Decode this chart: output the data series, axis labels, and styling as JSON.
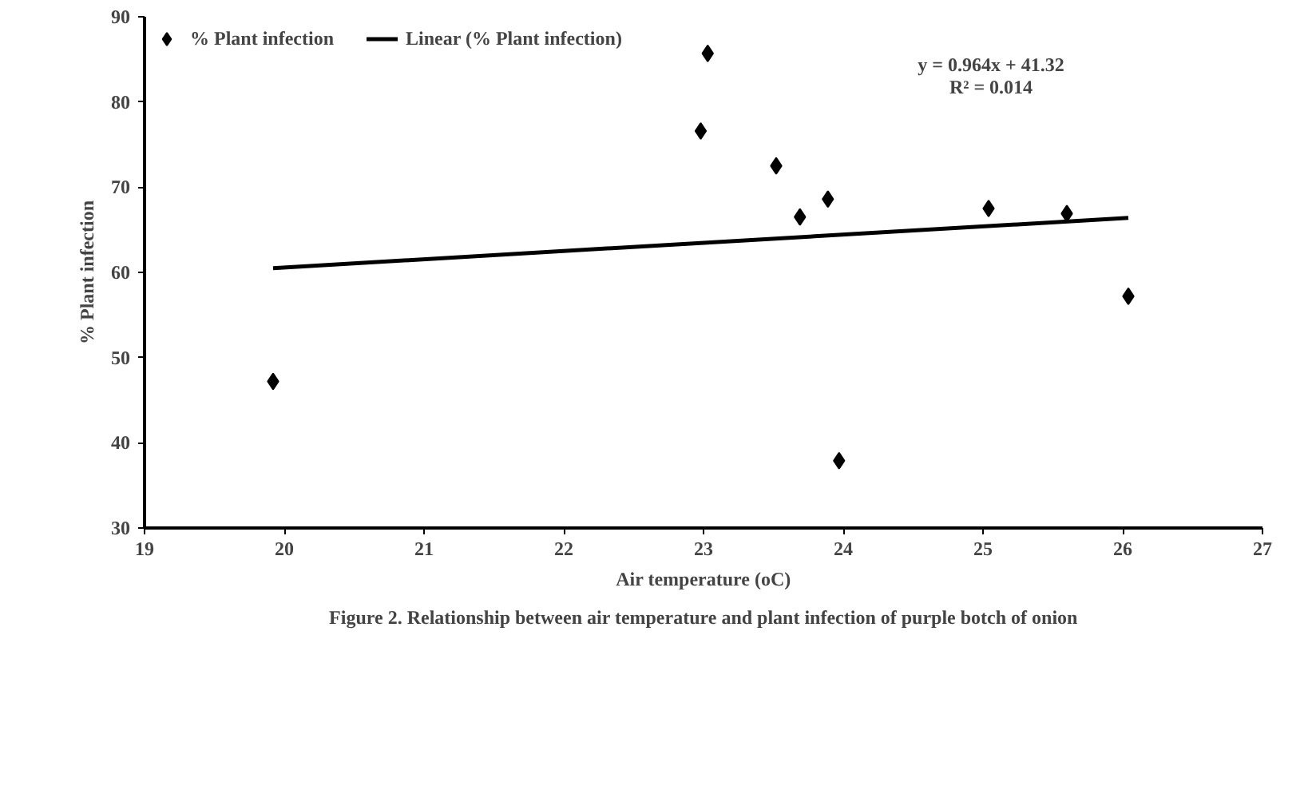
{
  "chart_data": {
    "type": "scatter",
    "title": "Figure 2. Relationship between air temperature and plant infection of purple botch of onion",
    "xlabel": "Air temperature (oC)",
    "ylabel": "% Plant infection",
    "series": [
      {
        "name": "% Plant infection",
        "color": "#000000",
        "marker": "diamond",
        "x": [
          19.92,
          23.03,
          22.98,
          23.52,
          23.69,
          23.89,
          23.97,
          25.04,
          25.6,
          26.04
        ],
        "values": [
          47.2,
          85.7,
          76.6,
          72.5,
          66.5,
          68.6,
          37.9,
          67.5,
          66.9,
          57.2
        ]
      },
      {
        "name": "Linear (% Plant infection)",
        "type": "line",
        "color": "#000000",
        "x": [
          19.92,
          26.04
        ],
        "values": [
          60.5,
          66.4
        ]
      }
    ],
    "annotations": [
      "y = 0.964x + 41.32",
      "R² = 0.014"
    ],
    "xlim": [
      19,
      27
    ],
    "xticks": [
      19,
      20,
      21,
      22,
      23,
      24,
      25,
      26,
      27
    ],
    "ylim": [
      30,
      90
    ],
    "yticks": [
      30,
      40,
      50,
      60,
      70,
      80,
      90
    ],
    "grid": false,
    "legend": "top"
  }
}
